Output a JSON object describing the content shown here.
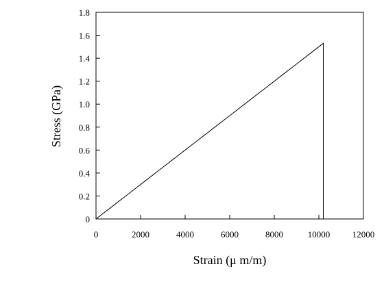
{
  "chart_data": {
    "type": "line",
    "title": "",
    "xlabel": "Strain (μ m/m)",
    "ylabel": "Stress (GPa)",
    "xlim": [
      0,
      12000
    ],
    "ylim": [
      0,
      1.8
    ],
    "xticks": [
      0,
      2000,
      4000,
      6000,
      8000,
      10000,
      12000
    ],
    "yticks": [
      0,
      0.2,
      0.4,
      0.6,
      0.8,
      1.0,
      1.2,
      1.4,
      1.6,
      1.8
    ],
    "xtick_labels": [
      "0",
      "2000",
      "4000",
      "6000",
      "8000",
      "10000",
      "12000"
    ],
    "ytick_labels": [
      "0",
      "0.2",
      "0.4",
      "0.6",
      "0.8",
      "1.0",
      "1.2",
      "1.4",
      "1.6",
      "1.8"
    ],
    "grid": false,
    "legend": "none",
    "line_color": "#000000",
    "series": [
      {
        "x": [
          0,
          500,
          1000,
          1500,
          2000,
          2500,
          3000,
          3500,
          4000,
          4500,
          5000,
          5500,
          6000,
          6500,
          7000,
          7500,
          8000,
          8500,
          9000,
          9500,
          10000,
          10200,
          10200
        ],
        "y": [
          0,
          0.075,
          0.15,
          0.225,
          0.3,
          0.375,
          0.45,
          0.525,
          0.6,
          0.675,
          0.75,
          0.825,
          0.9,
          0.975,
          1.05,
          1.125,
          1.2,
          1.275,
          1.35,
          1.425,
          1.5,
          1.53,
          0
        ]
      }
    ]
  }
}
